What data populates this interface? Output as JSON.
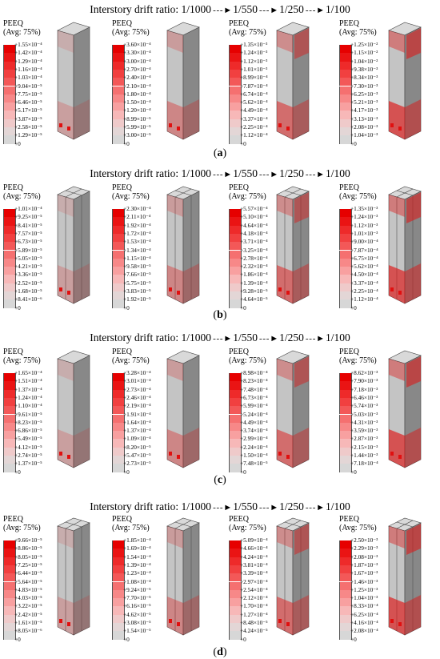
{
  "header_prefix": "Interstory drift ratio: ",
  "drift_steps": [
    "1/1000",
    "1/550",
    "1/250",
    "1/100"
  ],
  "arrow": "- - - ►",
  "rows": [
    {
      "label": "a",
      "style": "single",
      "panels": [
        {
          "title": "PEEQ",
          "subtitle": "(Avg: 75%)",
          "values": [
            "+1.55×10⁻⁴",
            "+1.42×10⁻⁴",
            "+1.29×10⁻⁴",
            "+1.16×10⁻⁴",
            "+1.03×10⁻⁴",
            "+9.04×10⁻⁵",
            "+7.75×10⁻⁵",
            "+6.46×10⁻⁵",
            "+5.17×10⁻⁵",
            "+3.87×10⁻⁵",
            "+2.58×10⁻⁵",
            "+1.29×10⁻⁵",
            "+0"
          ]
        },
        {
          "title": "PEEQ",
          "subtitle": "(Avg: 75%)",
          "values": [
            "+3.60×10⁻⁴",
            "+3.30×10⁻⁴",
            "+3.00×10⁻⁴",
            "+2.70×10⁻⁴",
            "+2.40×10⁻⁴",
            "+2.10×10⁻⁴",
            "+1.80×10⁻⁴",
            "+1.50×10⁻⁴",
            "+1.20×10⁻⁴",
            "+8.99×10⁻⁵",
            "+5.99×10⁻⁵",
            "+3.00×10⁻⁵",
            "+0"
          ]
        },
        {
          "title": "PEEQ",
          "subtitle": "(Avg: 75%)",
          "values": [
            "+1.35×10⁻³",
            "+1.24×10⁻³",
            "+1.12×10⁻³",
            "+1.01×10⁻³",
            "+8.99×10⁻⁴",
            "+7.87×10⁻⁴",
            "+6.74×10⁻⁴",
            "+5.62×10⁻⁴",
            "+4.49×10⁻⁴",
            "+3.37×10⁻⁴",
            "+2.25×10⁻⁴",
            "+1.12×10⁻⁴",
            "+0"
          ]
        },
        {
          "title": "PEEQ",
          "subtitle": "(Avg: 75%)",
          "values": [
            "+1.25×10⁻²",
            "+1.15×10⁻²",
            "+1.04×10⁻²",
            "+9.38×10⁻³",
            "+8.34×10⁻³",
            "+7.30×10⁻³",
            "+6.25×10⁻³",
            "+5.21×10⁻³",
            "+4.17×10⁻³",
            "+3.13×10⁻³",
            "+2.08×10⁻³",
            "+1.04×10⁻³",
            "+0"
          ]
        }
      ]
    },
    {
      "label": "b",
      "style": "quad",
      "panels": [
        {
          "title": "PEEQ",
          "subtitle": "(Avg: 75%)",
          "values": [
            "+1.01×10⁻⁴",
            "+9.25×10⁻⁵",
            "+8.41×10⁻⁵",
            "+7.57×10⁻⁵",
            "+6.73×10⁻⁵",
            "+5.89×10⁻⁵",
            "+5.05×10⁻⁵",
            "+4.21×10⁻⁵",
            "+3.36×10⁻⁵",
            "+2.52×10⁻⁵",
            "+1.68×10⁻⁵",
            "+8.41×10⁻⁶",
            "+0"
          ]
        },
        {
          "title": "PEEQ",
          "subtitle": "(Avg: 75%)",
          "values": [
            "+2.30×10⁻⁴",
            "+2.11×10⁻⁴",
            "+1.92×10⁻⁴",
            "+1.72×10⁻⁴",
            "+1.53×10⁻⁴",
            "+1.34×10⁻⁴",
            "+1.15×10⁻⁴",
            "+9.58×10⁻⁵",
            "+7.66×10⁻⁵",
            "+5.75×10⁻⁵",
            "+3.83×10⁻⁵",
            "+1.92×10⁻⁵",
            "+0"
          ]
        },
        {
          "title": "PEEQ",
          "subtitle": "(Avg: 75%)",
          "values": [
            "+5.57×10⁻⁴",
            "+5.10×10⁻⁴",
            "+4.64×10⁻⁴",
            "+4.18×10⁻⁴",
            "+3.71×10⁻⁴",
            "+3.25×10⁻⁴",
            "+2.78×10⁻⁴",
            "+2.32×10⁻⁴",
            "+1.86×10⁻⁴",
            "+1.39×10⁻⁴",
            "+9.28×10⁻⁵",
            "+4.64×10⁻⁵",
            "+0"
          ]
        },
        {
          "title": "PEEQ",
          "subtitle": "(Avg: 75%)",
          "values": [
            "+1.35×10⁻³",
            "+1.24×10⁻³",
            "+1.12×10⁻³",
            "+1.01×10⁻³",
            "+9.00×10⁻⁴",
            "+7.87×10⁻⁴",
            "+6.75×10⁻⁴",
            "+5.62×10⁻⁴",
            "+4.50×10⁻⁴",
            "+3.37×10⁻⁴",
            "+2.25×10⁻⁴",
            "+1.12×10⁻⁴",
            "+0"
          ]
        }
      ]
    },
    {
      "label": "c",
      "style": "single",
      "panels": [
        {
          "title": "PEEQ",
          "subtitle": "(Avg: 75%)",
          "values": [
            "+1.65×10⁻⁴",
            "+1.51×10⁻⁴",
            "+1.37×10⁻⁴",
            "+1.24×10⁻⁴",
            "+1.10×10⁻⁴",
            "+9.61×10⁻⁵",
            "+8.23×10⁻⁵",
            "+6.86×10⁻⁵",
            "+5.49×10⁻⁵",
            "+4.12×10⁻⁵",
            "+2.74×10⁻⁵",
            "+1.37×10⁻⁵",
            "+0"
          ]
        },
        {
          "title": "PEEQ",
          "subtitle": "(Avg: 75%)",
          "values": [
            "+3.28×10⁻⁴",
            "+3.01×10⁻⁴",
            "+2.73×10⁻⁴",
            "+2.46×10⁻⁴",
            "+2.19×10⁻⁴",
            "+1.91×10⁻⁴",
            "+1.64×10⁻⁴",
            "+1.37×10⁻⁴",
            "+1.09×10⁻⁴",
            "+8.20×10⁻⁵",
            "+5.47×10⁻⁵",
            "+2.73×10⁻⁵",
            "+0"
          ]
        },
        {
          "title": "PEEQ",
          "subtitle": "(Avg: 75%)",
          "values": [
            "+8.98×10⁻⁴",
            "+8.23×10⁻⁴",
            "+7.48×10⁻⁴",
            "+6.73×10⁻⁴",
            "+5.99×10⁻⁴",
            "+5.24×10⁻⁴",
            "+4.49×10⁻⁴",
            "+3.74×10⁻⁴",
            "+2.99×10⁻⁴",
            "+2.24×10⁻⁴",
            "+1.50×10⁻⁴",
            "+7.48×10⁻⁵",
            "+0"
          ]
        },
        {
          "title": "PEEQ",
          "subtitle": "(Avg: 75%)",
          "values": [
            "+8.62×10⁻³",
            "+7.90×10⁻³",
            "+7.18×10⁻³",
            "+6.46×10⁻³",
            "+5.74×10⁻³",
            "+5.03×10⁻³",
            "+4.31×10⁻³",
            "+3.59×10⁻³",
            "+2.87×10⁻³",
            "+2.15×10⁻³",
            "+1.44×10⁻³",
            "+7.18×10⁻⁴",
            "+0"
          ]
        }
      ]
    },
    {
      "label": "d",
      "style": "quad",
      "panels": [
        {
          "title": "PEEQ",
          "subtitle": "(Avg: 75%)",
          "values": [
            "+9.66×10⁻⁵",
            "+8.86×10⁻⁵",
            "+8.05×10⁻⁵",
            "+7.25×10⁻⁵",
            "+6.44×10⁻⁵",
            "+5.64×10⁻⁵",
            "+4.83×10⁻⁵",
            "+4.03×10⁻⁵",
            "+3.22×10⁻⁵",
            "+2.42×10⁻⁵",
            "+1.61×10⁻⁵",
            "+8.05×10⁻⁶",
            "+0"
          ]
        },
        {
          "title": "PEEQ",
          "subtitle": "(Avg: 75%)",
          "values": [
            "+1.85×10⁻⁴",
            "+1.69×10⁻⁴",
            "+1.54×10⁻⁴",
            "+1.39×10⁻⁴",
            "+1.23×10⁻⁴",
            "+1.08×10⁻⁴",
            "+9.24×10⁻⁵",
            "+7.70×10⁻⁵",
            "+6.16×10⁻⁵",
            "+4.62×10⁻⁵",
            "+3.08×10⁻⁵",
            "+1.54×10⁻⁵",
            "+0"
          ]
        },
        {
          "title": "PEEQ",
          "subtitle": "(Avg: 75%)",
          "values": [
            "+5.09×10⁻⁴",
            "+4.66×10⁻⁴",
            "+4.24×10⁻⁴",
            "+3.81×10⁻⁴",
            "+3.39×10⁻⁴",
            "+2.97×10⁻⁴",
            "+2.54×10⁻⁴",
            "+2.12×10⁻⁴",
            "+1.70×10⁻⁴",
            "+1.27×10⁻⁴",
            "+8.48×10⁻⁵",
            "+4.24×10⁻⁵",
            "+0"
          ]
        },
        {
          "title": "PEEQ",
          "subtitle": "(Avg: 75%)",
          "values": [
            "+2.50×10⁻³",
            "+2.29×10⁻³",
            "+2.08×10⁻³",
            "+1.87×10⁻³",
            "+1.67×10⁻³",
            "+1.46×10⁻³",
            "+1.25×10⁻³",
            "+1.04×10⁻³",
            "+8.33×10⁻⁴",
            "+6.25×10⁻⁴",
            "+4.16×10⁻⁴",
            "+2.08×10⁻⁴",
            "+0"
          ]
        }
      ]
    }
  ],
  "colors": {
    "legend_scale": [
      "#e60000",
      "#ea1414",
      "#ee2a2a",
      "#f14040",
      "#f35858",
      "#f57070",
      "#f78888",
      "#f8a0a0",
      "#f7b8b8",
      "#efcaca",
      "#e3d6d6",
      "#d7d7d7",
      "#cfcfcf"
    ],
    "column_front": "#c4c4c4",
    "column_side": "#888888",
    "column_top": "#d9d9d9",
    "damage": "#e01010"
  }
}
